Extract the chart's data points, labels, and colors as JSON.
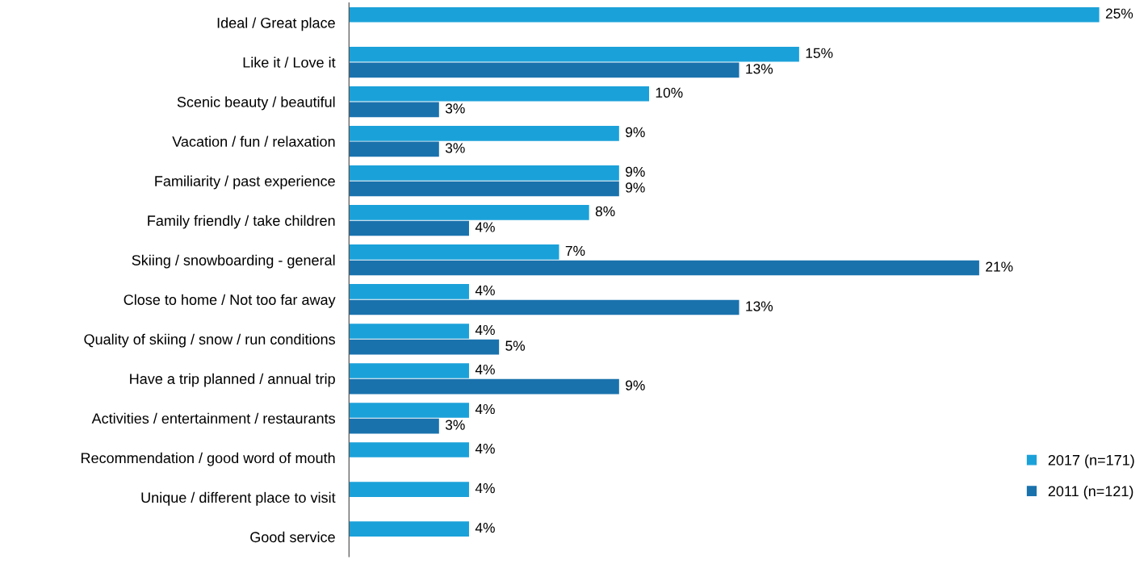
{
  "chart_data": {
    "type": "bar",
    "orientation": "horizontal",
    "categories": [
      "Ideal / Great place",
      "Like it / Love it",
      "Scenic beauty / beautiful",
      "Vacation / fun / relaxation",
      "Familiarity / past experience",
      "Family friendly / take children",
      "Skiing / snowboarding - general",
      "Close to home / Not too far away",
      "Quality of skiing / snow / run conditions",
      "Have a trip planned / annual trip",
      "Activities / entertainment / restaurants",
      "Recommendation / good word of mouth",
      "Unique / different place to visit",
      "Good service"
    ],
    "series": [
      {
        "name": "2017 (n=171)",
        "color": "#1ba1d9",
        "values": [
          25,
          15,
          10,
          9,
          9,
          8,
          7,
          4,
          4,
          4,
          4,
          4,
          4,
          4
        ],
        "value_labels": [
          "25%",
          "15%",
          "10%",
          "9%",
          "9%",
          "8%",
          "7%",
          "4%",
          "4%",
          "4%",
          "4%",
          "4%",
          "4%",
          "4%"
        ]
      },
      {
        "name": "2011 (n=121)",
        "color": "#1a72ad",
        "values": [
          null,
          13,
          3,
          3,
          9,
          4,
          21,
          13,
          5,
          9,
          3,
          null,
          null,
          null
        ],
        "value_labels": [
          null,
          "13%",
          "3%",
          "3%",
          "9%",
          "4%",
          "21%",
          "13%",
          "5%",
          "9%",
          "3%",
          null,
          null,
          null
        ]
      }
    ],
    "legend": "bottom right",
    "grid": false
  }
}
